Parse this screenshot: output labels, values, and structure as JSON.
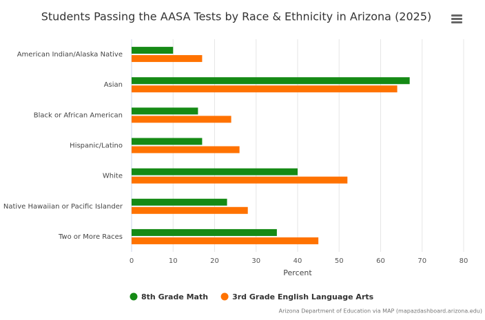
{
  "chart_data": {
    "type": "hbar",
    "title": "Students Passing the AASA Tests by Race & Ethnicity in Arizona (2025)",
    "categories": [
      "American Indian/Alaska Native",
      "Asian",
      "Black or African American",
      "Hispanic/Latino",
      "White",
      "Native Hawaiian or Pacific Islander",
      "Two or More Races"
    ],
    "series": [
      {
        "name": "8th Grade Math",
        "color": "#158a15",
        "values": [
          10,
          67,
          16,
          17,
          40,
          23,
          35
        ]
      },
      {
        "name": "3rd Grade English Language Arts",
        "color": "#ff7200",
        "values": [
          17,
          64,
          24,
          26,
          52,
          28,
          45
        ]
      }
    ],
    "xlabel": "Percent",
    "xlim": [
      0,
      80
    ],
    "xticks": [
      0,
      10,
      20,
      30,
      40,
      50,
      60,
      70,
      80
    ],
    "grid": true,
    "credits": "Arizona Department of Education via MAP (mapazdashboard.arizona.edu)"
  }
}
